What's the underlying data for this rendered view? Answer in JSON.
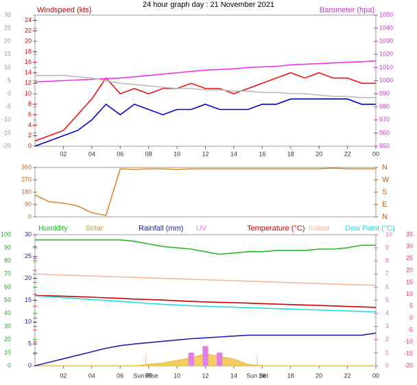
{
  "chart_data": [
    {
      "type": "line",
      "title": "24 hour graph day : 21 November 2021",
      "ylabel": "Windspeed (kts)",
      "y2label": "Barometer (hpa)",
      "x": [
        0,
        1,
        2,
        3,
        4,
        5,
        6,
        7,
        8,
        9,
        10,
        11,
        12,
        13,
        14,
        15,
        16,
        17,
        18,
        19,
        20,
        21,
        22,
        23,
        24
      ],
      "xlim": [
        0,
        24
      ],
      "xticks": [
        {
          "value": 2,
          "label": "02"
        },
        {
          "value": 4,
          "label": "04"
        },
        {
          "value": 6,
          "label": "06"
        },
        {
          "value": 8,
          "label": "08"
        },
        10,
        12,
        14,
        16,
        18,
        20,
        22,
        {
          "value": 24,
          "label": "00"
        }
      ],
      "ylim": [
        0,
        25
      ],
      "yticks": [
        0,
        2,
        4,
        6,
        8,
        10,
        12,
        14,
        16,
        18,
        20,
        22,
        24
      ],
      "y2lim": [
        950,
        1050
      ],
      "y2ticks": [
        950,
        960,
        970,
        980,
        990,
        1000,
        1010,
        1020,
        1030,
        1040,
        1050
      ],
      "y3lim": [
        -20,
        30
      ],
      "y3ticks": [
        -20,
        -15,
        -10,
        -5,
        0,
        5,
        10,
        15,
        20,
        25,
        30
      ],
      "series": [
        {
          "color": "#ee1111",
          "axis": "y",
          "style": "line",
          "values": [
            1,
            2,
            3,
            6,
            9,
            13,
            10,
            11,
            10,
            11,
            11,
            12,
            11,
            11,
            10,
            11,
            12,
            13,
            14,
            13,
            14,
            13,
            13,
            12,
            12
          ]
        },
        {
          "color": "#0000cc",
          "axis": "y",
          "style": "line",
          "values": [
            0,
            1,
            2,
            3,
            5,
            8,
            6,
            8,
            7,
            6,
            7,
            7,
            8,
            7,
            7,
            7,
            8,
            8,
            9,
            9,
            9,
            9,
            9,
            8,
            8
          ]
        },
        {
          "color": "#ee33ee",
          "axis": "y2",
          "style": "line",
          "values": [
            999,
            999.5,
            1000,
            1000.5,
            1001,
            1001.5,
            1002,
            1003,
            1004,
            1005,
            1006,
            1007,
            1008,
            1008.5,
            1009,
            1010,
            1010.5,
            1011,
            1012,
            1012.5,
            1013,
            1013.5,
            1014,
            1014.5,
            1015
          ]
        },
        {
          "color": "#bbbbbb",
          "axis": "y3",
          "style": "line",
          "values": [
            7,
            7,
            7,
            6.5,
            6,
            5,
            4,
            3.5,
            3,
            2.5,
            2,
            2,
            1.5,
            1.5,
            1,
            1,
            0.5,
            0.5,
            0,
            0,
            -0.5,
            -1,
            -1,
            -1.5,
            -1.5
          ]
        }
      ]
    },
    {
      "type": "line",
      "x": [
        0,
        1,
        2,
        3,
        4,
        5,
        6,
        7,
        8,
        9,
        10,
        11,
        12,
        13,
        14,
        15,
        16,
        17,
        18,
        19,
        20,
        21,
        22,
        23,
        24
      ],
      "xlim": [
        0,
        24
      ],
      "ylim": [
        0,
        360
      ],
      "yticks": [
        0,
        90,
        180,
        270,
        360
      ],
      "y2lim": [
        0,
        360
      ],
      "y2ticks": [
        {
          "value": 0,
          "label": "N"
        },
        {
          "value": 90,
          "label": "E"
        },
        {
          "value": 180,
          "label": "S"
        },
        {
          "value": 270,
          "label": "W"
        },
        {
          "value": 360,
          "label": "N"
        }
      ],
      "series": [
        {
          "color": "#dd8833",
          "axis": "y",
          "style": "line",
          "values": [
            160,
            110,
            100,
            80,
            30,
            10,
            350,
            345,
            350,
            350,
            345,
            350,
            350,
            350,
            350,
            350,
            350,
            350,
            350,
            350,
            350,
            355,
            350,
            350,
            350
          ]
        }
      ]
    },
    {
      "type": "line",
      "x": [
        0,
        1,
        2,
        3,
        4,
        5,
        6,
        7,
        8,
        9,
        10,
        11,
        12,
        13,
        14,
        15,
        16,
        17,
        18,
        19,
        20,
        21,
        22,
        23,
        24
      ],
      "xlim": [
        0,
        24
      ],
      "xticks": [
        {
          "value": 2,
          "label": "02"
        },
        {
          "value": 4,
          "label": "04"
        },
        {
          "value": 6,
          "label": "06"
        },
        {
          "value": 8,
          "label": "08"
        },
        10,
        12,
        14,
        16,
        18,
        20,
        22,
        {
          "value": 24,
          "label": "00"
        }
      ],
      "ylim": [
        0,
        100
      ],
      "yticks": [
        0,
        10,
        20,
        30,
        40,
        50,
        60,
        70,
        80,
        90,
        100
      ],
      "y2lim": [
        0,
        30
      ],
      "y2ticks": [
        0,
        5,
        10,
        15,
        20,
        25,
        30
      ],
      "y3lim": [
        -20,
        35
      ],
      "y3ticks": [
        -20,
        -15,
        -10,
        -5,
        0,
        5,
        10,
        15,
        20,
        25,
        30,
        35
      ],
      "y4lim": [
        0,
        10
      ],
      "y4ticks": [
        0,
        1,
        2,
        3,
        4,
        5,
        6,
        7,
        8,
        9,
        10
      ],
      "annotations": [
        {
          "text": "Sun Rise",
          "x": 7.8
        },
        {
          "text": "Sun Set",
          "x": 15.65
        }
      ],
      "series": [
        {
          "name": "Humidity",
          "color": "#22bb22",
          "axis": "y",
          "style": "line",
          "values": [
            96,
            96,
            96,
            96,
            96,
            96,
            96,
            95,
            93,
            91,
            90,
            89,
            87,
            85,
            86,
            87,
            87,
            88,
            88,
            88,
            89,
            89,
            90,
            92,
            92
          ]
        },
        {
          "name": "Solar",
          "color": "#f0c040",
          "axis": "y",
          "style": "area",
          "values": [
            0,
            0,
            0,
            0,
            0,
            0,
            0,
            0,
            1,
            2,
            4,
            6,
            9,
            7,
            5,
            1,
            0,
            0,
            0,
            0,
            0,
            0,
            0,
            0,
            0
          ]
        },
        {
          "name": "Rainfall (mm)",
          "color": "#2020aa",
          "axis": "y2",
          "style": "line",
          "values": [
            0,
            0.8,
            1.6,
            2.4,
            3.2,
            4.0,
            4.6,
            5.0,
            5.3,
            5.6,
            5.9,
            6.2,
            6.4,
            6.6,
            6.8,
            7,
            7,
            7,
            7,
            7,
            7,
            7,
            7,
            7,
            7.5
          ]
        },
        {
          "name": "UV",
          "color": "#e080e0",
          "axis": "y4",
          "style": "bar",
          "values": [
            0,
            0,
            0,
            0,
            0,
            0,
            0,
            0,
            0,
            0,
            0,
            1,
            1.5,
            1,
            0,
            0,
            0,
            0,
            0,
            0,
            0,
            0,
            0,
            0,
            0
          ]
        },
        {
          "name": "Temperature (°C)",
          "color": "#cc0000",
          "axis": "y3",
          "style": "line",
          "values": [
            9.5,
            9.4,
            9.2,
            9,
            8.8,
            8.5,
            8.3,
            8,
            7.8,
            7.6,
            7.3,
            7,
            6.8,
            6.6,
            6.5,
            6.3,
            6.1,
            5.9,
            5.7,
            5.5,
            5.3,
            5.1,
            4.9,
            4.7,
            4.5
          ]
        },
        {
          "name": "Indoor",
          "color": "#f5b898",
          "axis": "y3",
          "style": "line",
          "values": [
            18.5,
            18.3,
            18.1,
            17.9,
            17.7,
            17.5,
            17.3,
            17.1,
            16.9,
            16.7,
            16.5,
            16.3,
            16.1,
            15.9,
            15.7,
            15.5,
            15.3,
            15.1,
            14.9,
            14.7,
            14.5,
            14.3,
            14.1,
            13.9,
            13.8
          ]
        },
        {
          "name": "Dew Point (°C)",
          "color": "#22dddd",
          "axis": "y3",
          "style": "line",
          "values": [
            9.3,
            9,
            8.6,
            8.2,
            7.8,
            7.4,
            7,
            6.6,
            6.2,
            5.8,
            5.5,
            5.2,
            5,
            4.8,
            4.6,
            4.4,
            4.2,
            4,
            3.8,
            3.6,
            3.4,
            3.2,
            3,
            2.8,
            2.6
          ]
        }
      ]
    }
  ]
}
